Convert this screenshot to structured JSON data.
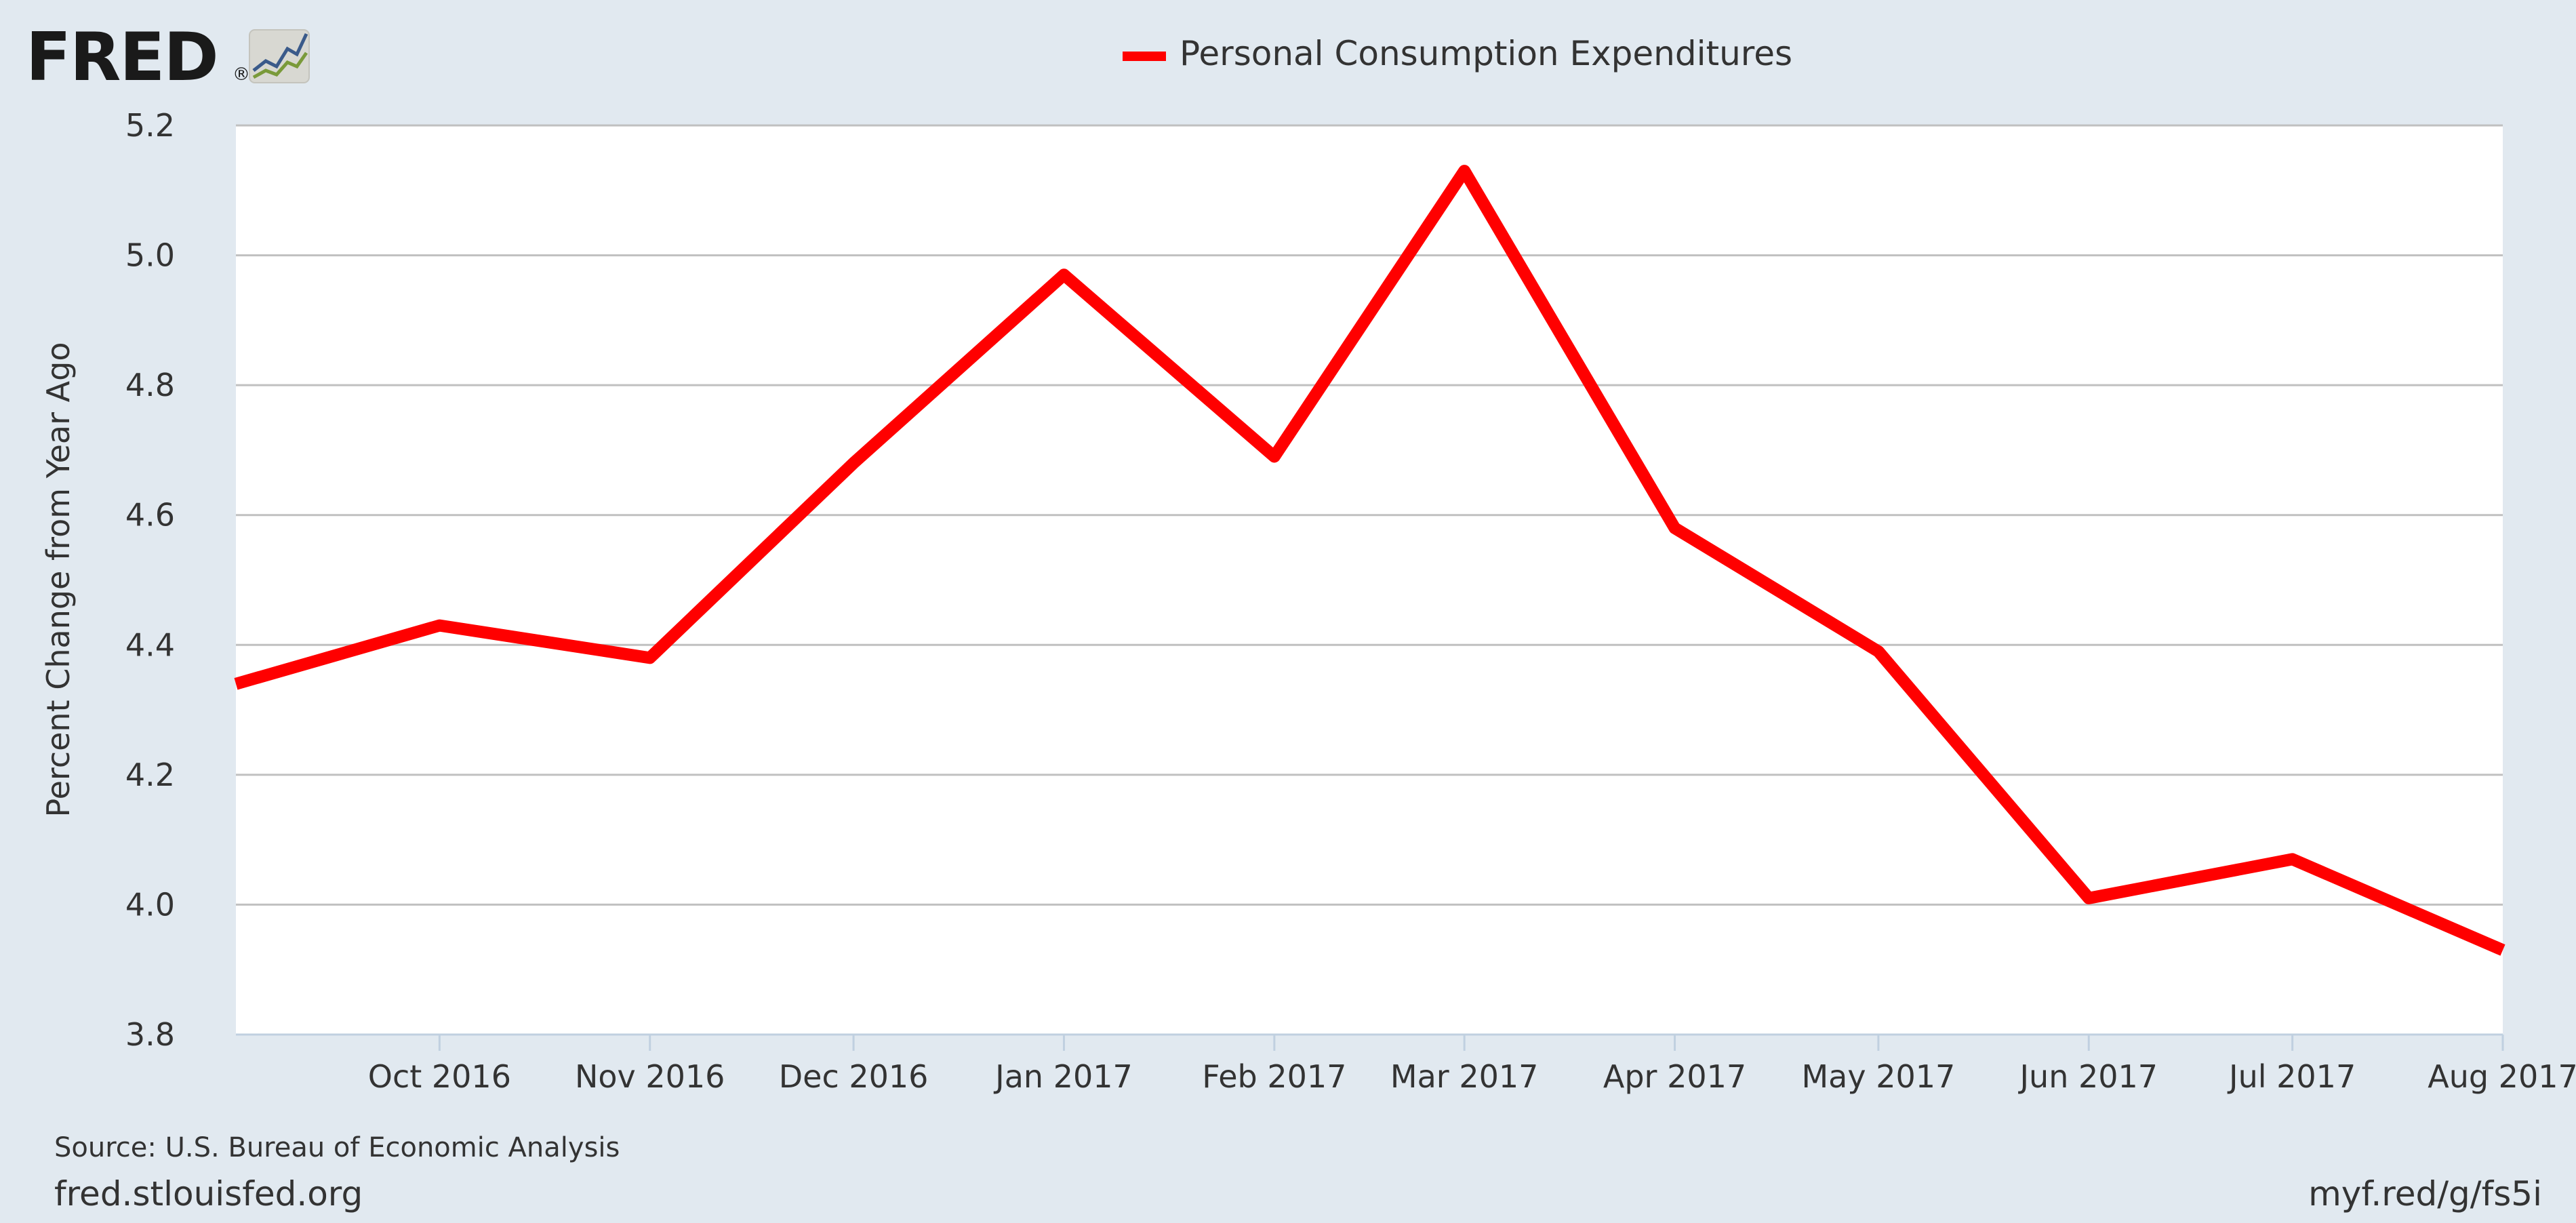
{
  "brand": {
    "logo_text": "FRED",
    "logo_mark": "®",
    "logo_icon": "line-chart-icon"
  },
  "legend": {
    "label": "Personal Consumption Expenditures",
    "color": "#ff0000"
  },
  "footer": {
    "source": "Source: U.S. Bureau of Economic Analysis",
    "site": "fred.stlouisfed.org",
    "short_link": "myf.red/g/fs5i"
  },
  "colors": {
    "background": "#e1e9f0",
    "plot_background": "#ffffff",
    "gridline": "#c0c0c0",
    "text": "#333333",
    "series": "#ff0000"
  },
  "chart_data": {
    "type": "line",
    "title": "",
    "xlabel": "",
    "ylabel": "Percent Change from Year Ago",
    "ylim": [
      3.8,
      5.2
    ],
    "yticks": [
      "3.8",
      "4.0",
      "4.2",
      "4.4",
      "4.6",
      "4.8",
      "5.0",
      "5.2"
    ],
    "grid": true,
    "legend_position": "top-center",
    "xlim": [
      "2016-09-01",
      "2017-08-01"
    ],
    "xticks": [
      {
        "date": "2016-10-01",
        "label": "Oct 2016"
      },
      {
        "date": "2016-11-01",
        "label": "Nov 2016"
      },
      {
        "date": "2016-12-01",
        "label": "Dec 2016"
      },
      {
        "date": "2017-01-01",
        "label": "Jan 2017"
      },
      {
        "date": "2017-02-01",
        "label": "Feb 2017"
      },
      {
        "date": "2017-03-01",
        "label": "Mar 2017"
      },
      {
        "date": "2017-04-01",
        "label": "Apr 2017"
      },
      {
        "date": "2017-05-01",
        "label": "May 2017"
      },
      {
        "date": "2017-06-01",
        "label": "Jun 2017"
      },
      {
        "date": "2017-07-01",
        "label": "Jul 2017"
      },
      {
        "date": "2017-08-01",
        "label": "Aug 2017"
      }
    ],
    "series": [
      {
        "name": "Personal Consumption Expenditures",
        "color": "#ff0000",
        "x": [
          "2016-09-01",
          "2016-10-01",
          "2016-11-01",
          "2016-12-01",
          "2017-01-01",
          "2017-02-01",
          "2017-03-01",
          "2017-04-01",
          "2017-05-01",
          "2017-06-01",
          "2017-07-01",
          "2017-08-01"
        ],
        "values": [
          4.34,
          4.43,
          4.38,
          4.68,
          4.97,
          4.69,
          5.13,
          4.58,
          4.39,
          4.01,
          4.07,
          3.93
        ]
      }
    ]
  }
}
